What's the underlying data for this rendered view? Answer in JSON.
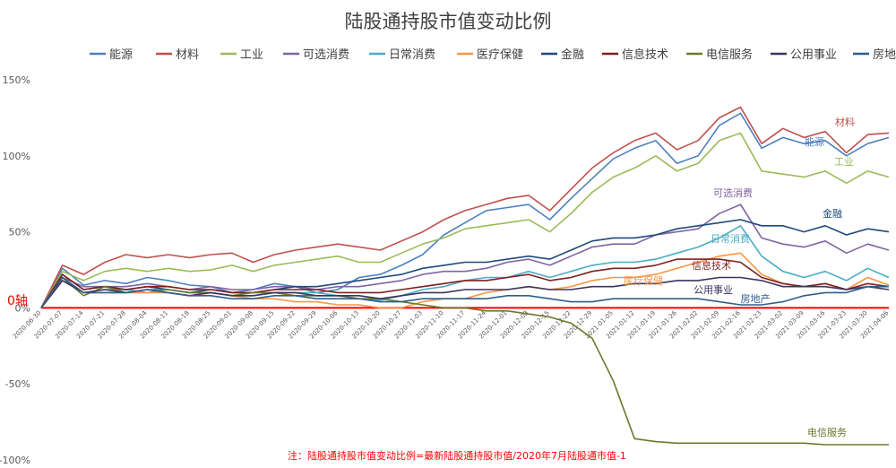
{
  "chart_data": {
    "type": "line",
    "title": "陆股通持股市值变动比例",
    "y_ticks": [
      "150%",
      "100%",
      "50%",
      "0%",
      "-50%",
      "-100%"
    ],
    "y_tick_values": [
      150,
      100,
      50,
      0,
      -50,
      -100
    ],
    "ylim": [
      -100,
      150
    ],
    "zero_label": "0轴",
    "x_ticks": [
      "2020-06-30",
      "2020-07-07",
      "2020-07-14",
      "2020-07-21",
      "2020-07-28",
      "2020-08-04",
      "2020-08-11",
      "2020-08-18",
      "2020-08-25",
      "2020-09-01",
      "2020-09-08",
      "2020-09-15",
      "2020-09-22",
      "2020-09-29",
      "2020-10-06",
      "2020-10-13",
      "2020-10-20",
      "2020-10-27",
      "2020-11-03",
      "2020-11-10",
      "2020-11-17",
      "2020-11-24",
      "2020-12-01",
      "2020-12-08",
      "2020-12-15",
      "2020-12-22",
      "2020-12-29",
      "2021-01-05",
      "2021-01-12",
      "2021-01-19",
      "2021-01-26",
      "2021-02-02",
      "2021-02-09",
      "2021-02-16",
      "2021-02-23",
      "2021-03-02",
      "2021-03-09",
      "2021-03-16",
      "2021-03-23",
      "2021-03-30",
      "2021-04-06"
    ],
    "legend_position": "top",
    "grid": false,
    "note": "注：陆股通持股市值变动比例=最新陆股通持股市值/2020年7月陆股通市值-1",
    "series": [
      {
        "name": "能源",
        "color": "#4e81bd",
        "label": "能源",
        "values": [
          0,
          26,
          15,
          18,
          16,
          20,
          18,
          15,
          14,
          10,
          12,
          16,
          14,
          10,
          12,
          20,
          22,
          28,
          35,
          48,
          56,
          64,
          66,
          68,
          58,
          72,
          85,
          98,
          105,
          110,
          95,
          100,
          120,
          128,
          105,
          112,
          108,
          110,
          100,
          108,
          112
        ]
      },
      {
        "name": "材料",
        "color": "#c0504d",
        "label": "材料",
        "values": [
          0,
          28,
          22,
          30,
          35,
          33,
          35,
          33,
          35,
          36,
          30,
          35,
          38,
          40,
          42,
          40,
          38,
          44,
          50,
          58,
          64,
          68,
          72,
          74,
          64,
          78,
          92,
          102,
          110,
          115,
          104,
          110,
          125,
          132,
          108,
          118,
          112,
          116,
          102,
          114,
          115
        ]
      },
      {
        "name": "工业",
        "color": "#9bbb59",
        "label": "工业",
        "values": [
          0,
          24,
          18,
          24,
          26,
          24,
          26,
          24,
          25,
          28,
          24,
          28,
          30,
          32,
          34,
          30,
          30,
          36,
          42,
          46,
          52,
          54,
          56,
          58,
          50,
          62,
          76,
          86,
          92,
          100,
          90,
          95,
          110,
          115,
          90,
          88,
          86,
          90,
          82,
          90,
          86
        ]
      },
      {
        "name": "可选消费",
        "color": "#8064a2",
        "label": "可选消费",
        "values": [
          0,
          20,
          14,
          14,
          14,
          16,
          14,
          12,
          14,
          12,
          12,
          14,
          14,
          12,
          14,
          14,
          16,
          18,
          22,
          24,
          24,
          26,
          30,
          32,
          28,
          34,
          40,
          42,
          42,
          48,
          50,
          52,
          62,
          68,
          46,
          42,
          40,
          44,
          36,
          42,
          38
        ]
      },
      {
        "name": "日常消费",
        "color": "#4bacc6",
        "label": "日常消费",
        "values": [
          0,
          18,
          10,
          12,
          12,
          10,
          12,
          10,
          10,
          8,
          8,
          10,
          10,
          10,
          8,
          6,
          5,
          8,
          12,
          14,
          18,
          20,
          20,
          24,
          20,
          24,
          28,
          30,
          30,
          32,
          36,
          40,
          46,
          54,
          34,
          24,
          20,
          24,
          18,
          26,
          20
        ]
      },
      {
        "name": "医疗保健",
        "color": "#f79646",
        "label": "医疗保健",
        "values": [
          0,
          18,
          10,
          10,
          10,
          10,
          10,
          8,
          10,
          8,
          6,
          6,
          4,
          4,
          2,
          2,
          0,
          0,
          4,
          6,
          6,
          10,
          12,
          14,
          12,
          14,
          18,
          20,
          20,
          22,
          26,
          30,
          34,
          36,
          22,
          16,
          14,
          16,
          12,
          20,
          15
        ]
      },
      {
        "name": "金融",
        "color": "#1f497d",
        "label": "金融",
        "values": [
          0,
          22,
          12,
          14,
          12,
          14,
          12,
          10,
          12,
          10,
          10,
          12,
          14,
          14,
          16,
          18,
          20,
          22,
          26,
          28,
          30,
          30,
          32,
          34,
          32,
          38,
          44,
          46,
          46,
          48,
          52,
          54,
          56,
          58,
          54,
          54,
          50,
          54,
          48,
          52,
          50
        ]
      },
      {
        "name": "信息技术",
        "color": "#7f1f1d",
        "label": "信息技术",
        "values": [
          0,
          22,
          12,
          14,
          12,
          14,
          14,
          12,
          12,
          10,
          10,
          12,
          12,
          12,
          10,
          10,
          10,
          12,
          14,
          16,
          18,
          18,
          20,
          22,
          18,
          20,
          24,
          26,
          26,
          28,
          32,
          32,
          32,
          30,
          20,
          16,
          14,
          16,
          12,
          16,
          14
        ]
      },
      {
        "name": "电信服务",
        "color": "#6a7a2c",
        "label": "电信服务",
        "values": [
          0,
          20,
          8,
          14,
          10,
          12,
          12,
          10,
          10,
          8,
          10,
          10,
          8,
          8,
          8,
          6,
          6,
          4,
          2,
          0,
          0,
          -2,
          -2,
          -4,
          -6,
          -10,
          -20,
          -48,
          -86,
          -88,
          -89,
          -89,
          -89,
          -89,
          -89,
          -89,
          -89,
          -90,
          -90,
          -90,
          -90
        ]
      },
      {
        "name": "公用事业",
        "color": "#3b3461",
        "label": "公用事业",
        "values": [
          0,
          18,
          10,
          12,
          10,
          12,
          10,
          8,
          10,
          8,
          8,
          10,
          10,
          8,
          8,
          8,
          6,
          8,
          10,
          10,
          12,
          12,
          12,
          14,
          12,
          12,
          14,
          14,
          16,
          16,
          18,
          18,
          20,
          20,
          18,
          14,
          14,
          14,
          12,
          14,
          12
        ]
      },
      {
        "name": "房地产",
        "color": "#2e5f8c",
        "label": "房地产",
        "values": [
          0,
          20,
          10,
          10,
          10,
          12,
          10,
          8,
          8,
          6,
          6,
          8,
          8,
          6,
          6,
          6,
          4,
          4,
          6,
          6,
          6,
          6,
          8,
          8,
          6,
          4,
          4,
          6,
          6,
          6,
          6,
          6,
          4,
          2,
          2,
          4,
          8,
          10,
          10,
          14,
          14
        ]
      }
    ]
  }
}
